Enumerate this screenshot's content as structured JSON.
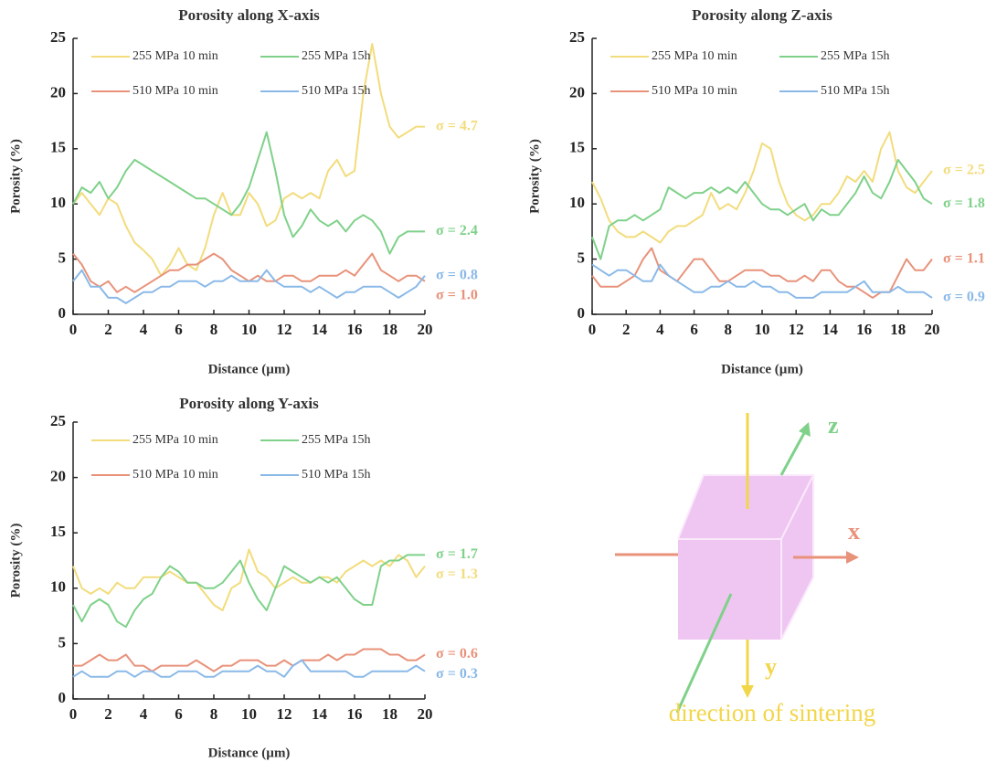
{
  "chart_data": [
    {
      "type": "line",
      "title": "Porosity along X-axis",
      "xlabel": "Distance (µm)",
      "ylabel": "Porosity (%)",
      "x": [
        0,
        0.5,
        1,
        1.5,
        2,
        2.5,
        3,
        3.5,
        4,
        4.5,
        5,
        5.5,
        6,
        6.5,
        7,
        7.5,
        8,
        8.5,
        9,
        9.5,
        10,
        10.5,
        11,
        11.5,
        12,
        12.5,
        13,
        13.5,
        14,
        14.5,
        15,
        15.5,
        16,
        16.5,
        17,
        17.5,
        18,
        18.5,
        19,
        19.5,
        20
      ],
      "xlim": [
        0,
        20
      ],
      "xticks": [
        0,
        2,
        4,
        6,
        8,
        10,
        12,
        14,
        16,
        18,
        20
      ],
      "ylim": [
        0,
        25
      ],
      "yticks": [
        0,
        5,
        10,
        15,
        20,
        25
      ],
      "legend": "upper left",
      "series": [
        {
          "name": "255 MPa 10 min",
          "color": "#f2dc7c",
          "sigma_label": "σ = 4.7",
          "values": [
            10,
            11,
            10,
            9,
            10.5,
            10,
            8,
            6.5,
            5.8,
            5,
            3.5,
            4.5,
            6,
            4.5,
            4,
            6,
            9,
            11,
            9,
            9,
            11,
            10,
            8,
            8.5,
            10.5,
            11,
            10.5,
            11,
            10.5,
            13,
            14,
            12.5,
            13,
            20,
            24.5,
            20,
            17,
            16,
            16.5,
            17,
            17
          ]
        },
        {
          "name": "255 MPa 15h",
          "color": "#7fd18a",
          "sigma_label": "σ = 2.4",
          "values": [
            10,
            11.5,
            11,
            12,
            10.5,
            11.5,
            13,
            14,
            13.5,
            13,
            12.5,
            12,
            11.5,
            11,
            10.5,
            10.5,
            10,
            9.5,
            9,
            10,
            11.5,
            14,
            16.5,
            13,
            9,
            7,
            8,
            9.5,
            8.5,
            8,
            8.5,
            7.5,
            8.5,
            9,
            8.5,
            7.5,
            5.5,
            7,
            7.5,
            7.5,
            7.5
          ]
        },
        {
          "name": "510 MPa 10 min",
          "color": "#e8927a",
          "sigma_label": "σ = 1.0",
          "values": [
            5.5,
            4.5,
            3,
            2.5,
            3,
            2,
            2.5,
            2,
            2.5,
            3,
            3.5,
            4,
            4,
            4.5,
            4.5,
            5,
            5.5,
            5,
            4,
            3.5,
            3,
            3.5,
            3,
            3,
            3.5,
            3.5,
            3,
            3,
            3.5,
            3.5,
            3.5,
            4,
            3.5,
            4.5,
            5.5,
            4,
            3.5,
            3,
            3.5,
            3.5,
            3
          ]
        },
        {
          "name": "510 MPa 15h",
          "color": "#8ab9e8",
          "sigma_label": "σ = 0.8",
          "values": [
            3,
            4,
            2.5,
            2.5,
            1.5,
            1.5,
            1,
            1.5,
            2,
            2,
            2.5,
            2.5,
            3,
            3,
            3,
            2.5,
            3,
            3,
            3.5,
            3,
            3,
            3,
            4,
            3,
            2.5,
            2.5,
            2.5,
            2,
            2.5,
            2,
            1.5,
            2,
            2,
            2.5,
            2.5,
            2.5,
            2,
            1.5,
            2,
            2.5,
            3.5
          ]
        }
      ]
    },
    {
      "type": "line",
      "title": "Porosity along Z-axis",
      "xlabel": "Distance (µm)",
      "ylabel": "Porosity (%)",
      "x": [
        0,
        0.5,
        1,
        1.5,
        2,
        2.5,
        3,
        3.5,
        4,
        4.5,
        5,
        5.5,
        6,
        6.5,
        7,
        7.5,
        8,
        8.5,
        9,
        9.5,
        10,
        10.5,
        11,
        11.5,
        12,
        12.5,
        13,
        13.5,
        14,
        14.5,
        15,
        15.5,
        16,
        16.5,
        17,
        17.5,
        18,
        18.5,
        19,
        19.5,
        20
      ],
      "xlim": [
        0,
        20
      ],
      "xticks": [
        0,
        2,
        4,
        6,
        8,
        10,
        12,
        14,
        16,
        18,
        20
      ],
      "ylim": [
        0,
        25
      ],
      "yticks": [
        0,
        5,
        10,
        15,
        20,
        25
      ],
      "legend": "upper left",
      "series": [
        {
          "name": "255 MPa 10 min",
          "color": "#f2dc7c",
          "sigma_label": "σ = 2.5",
          "values": [
            12,
            10.5,
            8.5,
            7.5,
            7,
            7,
            7.5,
            7,
            6.5,
            7.5,
            8,
            8,
            8.5,
            9,
            11,
            9.5,
            10,
            9.5,
            11,
            13,
            15.5,
            15,
            12,
            10,
            9,
            8.5,
            9,
            10,
            10,
            11,
            12.5,
            12,
            13,
            12,
            15,
            16.5,
            13,
            11.5,
            11,
            12,
            13
          ]
        },
        {
          "name": "255 MPa 15h",
          "color": "#7fd18a",
          "sigma_label": "σ = 1.8",
          "values": [
            7,
            5,
            8,
            8.5,
            8.5,
            9,
            8.5,
            9,
            9.5,
            11.5,
            11,
            10.5,
            11,
            11,
            11.5,
            11,
            11.5,
            11,
            12,
            11,
            10,
            9.5,
            9.5,
            9,
            9.5,
            10,
            8.5,
            9.5,
            9,
            9,
            10,
            11,
            12.5,
            11,
            10.5,
            12,
            14,
            13,
            12,
            10.5,
            10
          ]
        },
        {
          "name": "510 MPa 10 min",
          "color": "#e8927a",
          "sigma_label": "σ = 1.1",
          "values": [
            3.5,
            2.5,
            2.5,
            2.5,
            3,
            3.5,
            5,
            6,
            4,
            3.5,
            3,
            4,
            5,
            5,
            4,
            3,
            3,
            3.5,
            4,
            4,
            4,
            3.5,
            3.5,
            3,
            3,
            3.5,
            3,
            4,
            4,
            3,
            2.5,
            2.5,
            2,
            1.5,
            2,
            2,
            3.5,
            5,
            4,
            4,
            5
          ]
        },
        {
          "name": "510 MPa 15h",
          "color": "#8ab9e8",
          "sigma_label": "σ = 0.9",
          "values": [
            4.5,
            4,
            3.5,
            4,
            4,
            3.5,
            3,
            3,
            4.5,
            3.5,
            3,
            2.5,
            2,
            2,
            2.5,
            2.5,
            3,
            2.5,
            2.5,
            3,
            2.5,
            2.5,
            2,
            2,
            1.5,
            1.5,
            1.5,
            2,
            2,
            2,
            2,
            2.5,
            3,
            2,
            2,
            2,
            2.5,
            2,
            2,
            2,
            1.5
          ]
        }
      ]
    },
    {
      "type": "line",
      "title": "Porosity along Y-axis",
      "xlabel": "Distance (µm)",
      "ylabel": "Porosity (%)",
      "x": [
        0,
        0.5,
        1,
        1.5,
        2,
        2.5,
        3,
        3.5,
        4,
        4.5,
        5,
        5.5,
        6,
        6.5,
        7,
        7.5,
        8,
        8.5,
        9,
        9.5,
        10,
        10.5,
        11,
        11.5,
        12,
        12.5,
        13,
        13.5,
        14,
        14.5,
        15,
        15.5,
        16,
        16.5,
        17,
        17.5,
        18,
        18.5,
        19,
        19.5,
        20
      ],
      "xlim": [
        0,
        20
      ],
      "xticks": [
        0,
        2,
        4,
        6,
        8,
        10,
        12,
        14,
        16,
        18,
        20
      ],
      "ylim": [
        0,
        25
      ],
      "yticks": [
        0,
        5,
        10,
        15,
        20,
        25
      ],
      "legend": "upper left",
      "series": [
        {
          "name": "255 MPa 10 min",
          "color": "#f2dc7c",
          "sigma_label": "σ = 1.3",
          "values": [
            12,
            10,
            9.5,
            10,
            9.5,
            10.5,
            10,
            10,
            11,
            11,
            11,
            11.5,
            11,
            10.5,
            10.5,
            9.5,
            8.5,
            8,
            10,
            10.5,
            13.5,
            11.5,
            11,
            10,
            10.5,
            11,
            10.5,
            10.5,
            11,
            11,
            10.5,
            11.5,
            12,
            12.5,
            12,
            12.5,
            12,
            13,
            12.5,
            11,
            12
          ]
        },
        {
          "name": "255 MPa 15h",
          "color": "#7fd18a",
          "sigma_label": "σ = 1.7",
          "values": [
            8.5,
            7,
            8.5,
            9,
            8.5,
            7,
            6.5,
            8,
            9,
            9.5,
            11,
            12,
            11.5,
            10.5,
            10.5,
            10,
            10,
            10.5,
            11.5,
            12.5,
            10.5,
            9,
            8,
            10,
            12,
            11.5,
            11,
            10.5,
            11,
            10.5,
            11,
            10,
            9,
            8.5,
            8.5,
            12,
            12.5,
            12.5,
            13,
            13,
            13
          ]
        },
        {
          "name": "510 MPa 10 min",
          "color": "#e8927a",
          "sigma_label": "σ = 0.6",
          "values": [
            3,
            3,
            3.5,
            4,
            3.5,
            3.5,
            4,
            3,
            3,
            2.5,
            3,
            3,
            3,
            3,
            3.5,
            3,
            2.5,
            3,
            3,
            3.5,
            3.5,
            3.5,
            3,
            3,
            3.5,
            3,
            3.5,
            3.5,
            3.5,
            4,
            3.5,
            4,
            4,
            4.5,
            4.5,
            4.5,
            4,
            4,
            3.5,
            3.5,
            4
          ]
        },
        {
          "name": "510 MPa 15h",
          "color": "#8ab9e8",
          "sigma_label": "σ = 0.3",
          "values": [
            2,
            2.5,
            2,
            2,
            2,
            2.5,
            2.5,
            2,
            2.5,
            2.5,
            2,
            2,
            2.5,
            2.5,
            2.5,
            2,
            2,
            2.5,
            2.5,
            2.5,
            2.5,
            3,
            2.5,
            2.5,
            2,
            3,
            3.5,
            2.5,
            2.5,
            2.5,
            2.5,
            2.5,
            2,
            2,
            2.5,
            2.5,
            2.5,
            2.5,
            2.5,
            3,
            2.5
          ]
        }
      ]
    }
  ],
  "diagram": {
    "x_label": "x",
    "y_label": "y",
    "z_label": "z",
    "caption": "direction of sintering"
  }
}
